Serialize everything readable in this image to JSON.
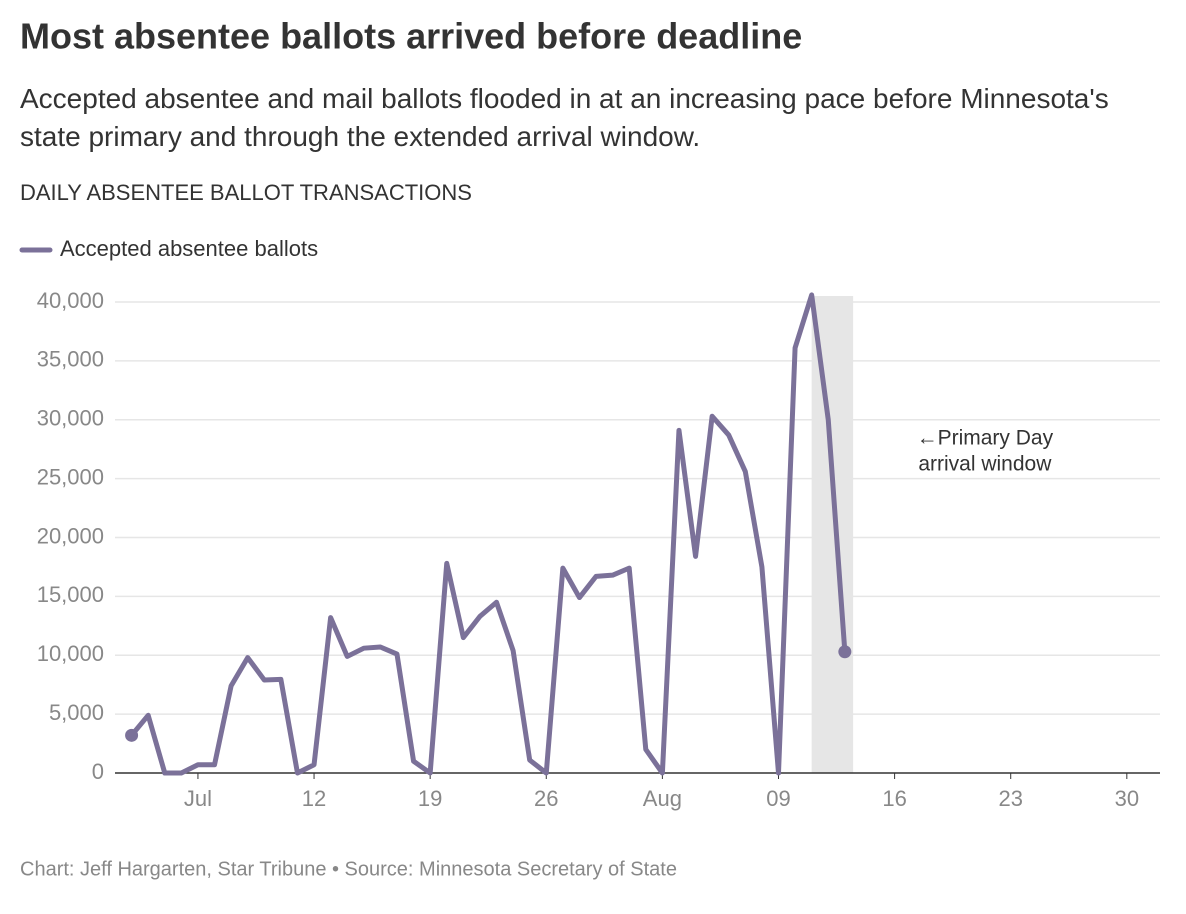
{
  "chart_data": {
    "type": "line",
    "title": "Most absentee ballots arrived before deadline",
    "subtitle": "Accepted absentee and mail ballots flooded in at an increasing pace before Minnesota's state primary and through the extended arrival window.",
    "y_label": "DAILY ABSENTEE BALLOT TRANSACTIONS",
    "source": "Chart: Jeff Hargarten, Star Tribune • Source: Minnesota Secretary of State",
    "annotation": [
      "←Primary Day",
      "arrival window"
    ],
    "shade": [
      "08-11",
      "08-13"
    ],
    "x": [
      "07-01",
      "07-02",
      "07-03",
      "07-04",
      "07-05",
      "07-06",
      "07-07",
      "07-08",
      "07-09",
      "07-10",
      "07-11",
      "07-12",
      "07-13",
      "07-14",
      "07-15",
      "07-16",
      "07-17",
      "07-18",
      "07-19",
      "07-20",
      "07-21",
      "07-22",
      "07-23",
      "07-24",
      "07-25",
      "07-26",
      "07-27",
      "07-28",
      "07-29",
      "07-30",
      "07-31",
      "08-01",
      "08-02",
      "08-03",
      "08-04",
      "08-05",
      "08-06",
      "08-07",
      "08-08",
      "08-09",
      "08-10",
      "08-11",
      "08-12",
      "08-13"
    ],
    "series": [
      {
        "name": "Accepted absentee ballots",
        "color": "#7b7199",
        "values": [
          3200,
          4900,
          0,
          0,
          700,
          700,
          7400,
          9800,
          7900,
          7950,
          0,
          700,
          13200,
          9900,
          10600,
          10700,
          10100,
          1000,
          0,
          17800,
          11500,
          13300,
          14500,
          10400,
          1100,
          0,
          17400,
          14900,
          16700,
          16800,
          17400,
          2000,
          0,
          29100,
          18400,
          30300,
          28700,
          25600,
          17500,
          0,
          36100,
          40600,
          30000,
          10300
        ]
      }
    ],
    "xlim": [
      "06-30",
      "09-01"
    ],
    "xticks": [
      {
        "value": "07-05",
        "label": "Jul"
      },
      {
        "value": "07-12",
        "label": "12"
      },
      {
        "value": "07-19",
        "label": "19"
      },
      {
        "value": "07-26",
        "label": "26"
      },
      {
        "value": "08-02",
        "label": "Aug"
      },
      {
        "value": "08-09",
        "label": "09"
      },
      {
        "value": "08-16",
        "label": "16"
      },
      {
        "value": "08-23",
        "label": "23"
      },
      {
        "value": "08-30",
        "label": "30"
      }
    ],
    "ylim": [
      0,
      40000
    ],
    "yticks": [
      0,
      {
        "value": 5000,
        "label": "5,000"
      },
      {
        "value": 10000,
        "label": "10,000"
      },
      {
        "value": 15000,
        "label": "15,000"
      },
      {
        "value": 20000,
        "label": "20,000"
      },
      {
        "value": 25000,
        "label": "25,000"
      },
      {
        "value": 30000,
        "label": "30,000"
      },
      {
        "value": 35000,
        "label": "35,000"
      },
      {
        "value": 40000,
        "label": "40,000"
      }
    ],
    "grid": true
  }
}
